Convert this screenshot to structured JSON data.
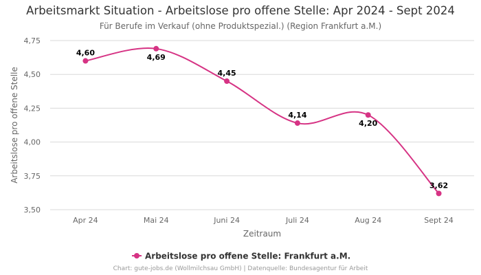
{
  "title": "Arbeitsmarkt Situation - Arbeitslose pro offene Stelle: Apr 2024 - Sept 2024",
  "subtitle": "Für Berufe im Verkauf (ohne Produktspezial.) (Region Frankfurt a.M.)",
  "credits": "Chart: gute-jobs.de (Wollmilchsau GmbH) | Datenquelle: Bundesagentur für Arbeit",
  "chart_data": {
    "type": "line",
    "categories": [
      "Apr 24",
      "Mai 24",
      "Juni 24",
      "Juli 24",
      "Aug 24",
      "Sept 24"
    ],
    "series": [
      {
        "name": "Arbeitslose pro offene Stelle: Frankfurt a.M.",
        "values": [
          4.6,
          4.69,
          4.45,
          4.14,
          4.2,
          3.62
        ],
        "labels": [
          "4,60",
          "4,69",
          "4,45",
          "4,14",
          "4,20",
          "3,62"
        ],
        "color": "#d63384"
      }
    ],
    "xlabel": "Zeitraum",
    "ylabel": "Arbeitslose pro offene Stelle",
    "ylim": [
      3.5,
      4.75
    ],
    "yticks": [
      "3,50",
      "3,75",
      "4,00",
      "4,25",
      "4,50",
      "4,75"
    ],
    "grid": true,
    "legend_position": "bottom"
  }
}
